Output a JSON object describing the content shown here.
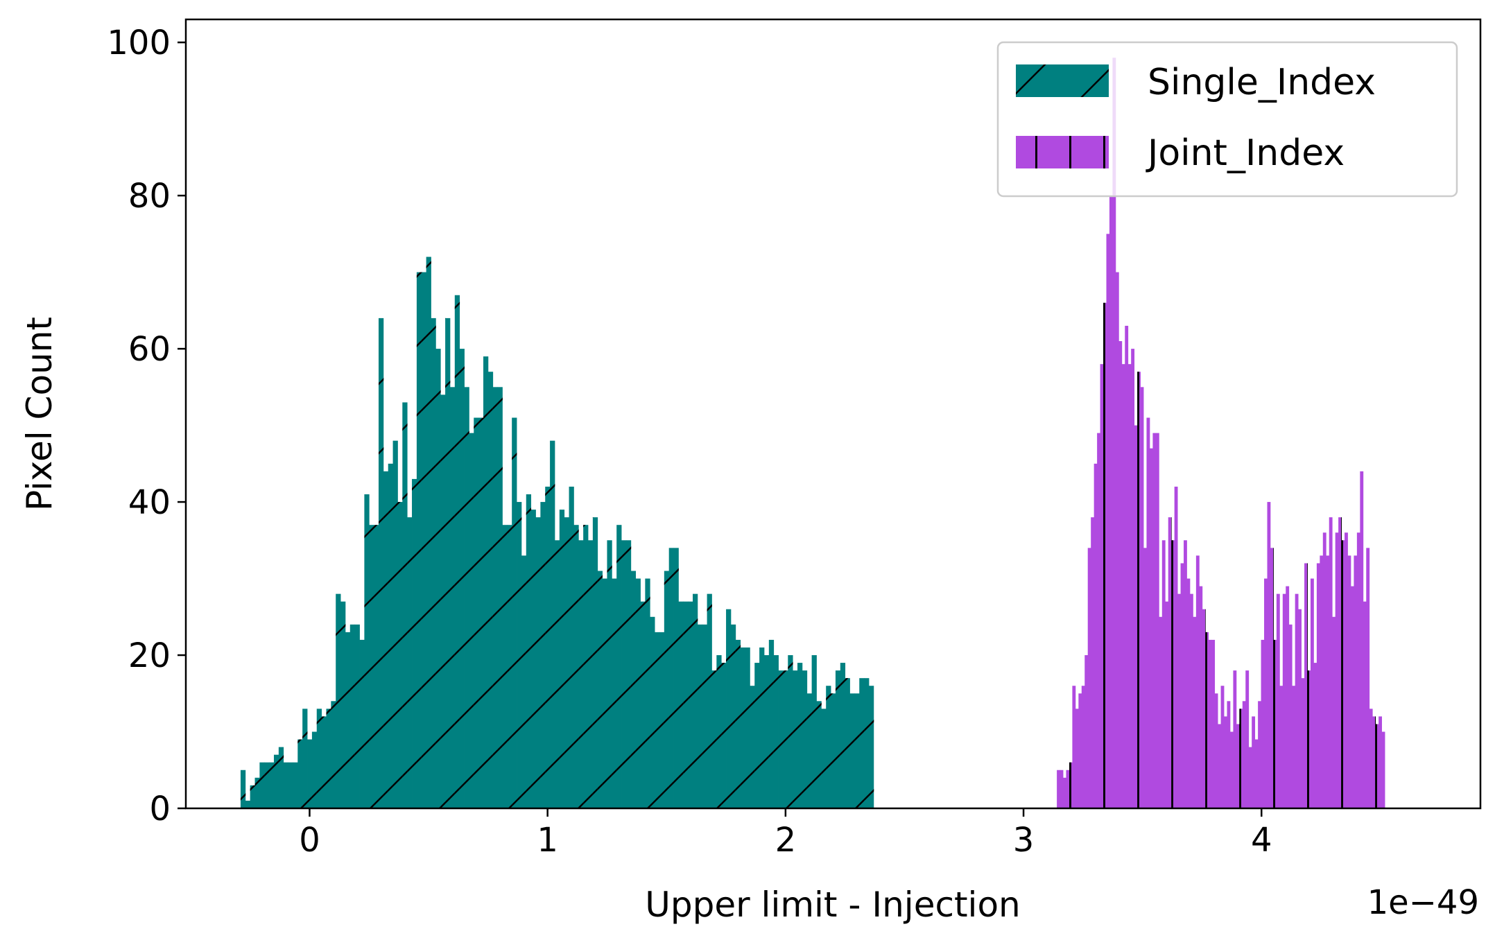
{
  "chart_data": {
    "type": "bar",
    "title": "",
    "xlabel": "Upper limit - Injection",
    "ylabel": "Pixel Count",
    "x_offset_text": "1e−49",
    "xlim": [
      -0.52,
      4.92
    ],
    "ylim": [
      0,
      103
    ],
    "xticks": [
      0,
      1,
      2,
      3,
      4
    ],
    "yticks": [
      0,
      20,
      40,
      60,
      80,
      100
    ],
    "grid": false,
    "legend_position": "top-right",
    "series": [
      {
        "name": "Single_Index",
        "color": "#008080",
        "hatch": "forward-slash",
        "bin_width": 0.02,
        "x_start": -0.29,
        "values": [
          5,
          1,
          3,
          4,
          6,
          6,
          6,
          7,
          8,
          6,
          6,
          6,
          9,
          13,
          9,
          10,
          13,
          12,
          13,
          14,
          28,
          27,
          23,
          24,
          24,
          22,
          41,
          37,
          37,
          64,
          44,
          45,
          48,
          40,
          53,
          38,
          43,
          70,
          70,
          72,
          64,
          60,
          54,
          64,
          55,
          67,
          60,
          55,
          49,
          51,
          51,
          59,
          57,
          55,
          55,
          37,
          37,
          51,
          40,
          33,
          41,
          39,
          38,
          40,
          42,
          48,
          35,
          39,
          38,
          42,
          37,
          35,
          37,
          35,
          38,
          31,
          30,
          35,
          30,
          37,
          35,
          35,
          31,
          30,
          27,
          30,
          25,
          23,
          23,
          31,
          34,
          34,
          27,
          27,
          27,
          28,
          24,
          24,
          28,
          18,
          20,
          19,
          26,
          24,
          22,
          21,
          21,
          16,
          19,
          21,
          20,
          22,
          20,
          18,
          18,
          20,
          18,
          19,
          18,
          15,
          20,
          14,
          13,
          16,
          15,
          18,
          19,
          17,
          15,
          15,
          17,
          17,
          16
        ],
        "_fixes": "ignored"
      },
      {
        "name": "Joint_Index",
        "color": "#b04ae0",
        "hatch": "vertical",
        "bin_width": 0.013,
        "x_start": 3.14,
        "values": [
          5,
          5,
          4,
          5,
          6,
          16,
          13,
          15,
          16,
          20,
          34,
          38,
          45,
          49,
          58,
          66,
          75,
          80,
          98,
          70,
          61,
          58,
          63,
          58,
          60,
          50,
          57,
          55,
          34,
          51,
          47,
          49,
          49,
          25,
          35,
          27,
          38,
          35,
          42,
          28,
          32,
          35,
          30,
          28,
          25,
          33,
          29,
          26,
          23,
          22,
          22,
          15,
          11,
          16,
          12,
          14,
          10,
          18,
          11,
          13,
          14,
          18,
          8,
          12,
          9,
          14,
          22,
          30,
          40,
          34,
          22,
          28,
          16,
          28,
          29,
          24,
          16,
          28,
          26,
          17,
          32,
          18,
          30,
          19,
          32,
          33,
          36,
          33,
          38,
          25,
          36,
          38,
          35,
          36,
          33,
          29,
          33,
          36,
          44,
          27,
          34,
          13,
          12,
          11,
          12,
          10
        ]
      }
    ]
  }
}
